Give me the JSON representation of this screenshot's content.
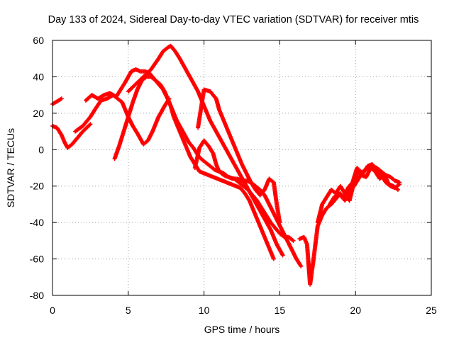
{
  "chart_data": {
    "type": "scatter",
    "title": "Day 133 of 2024, Sidereal Day-to-day VTEC variation (SDTVAR) for receiver mtis",
    "xlabel": "GPS time / hours",
    "ylabel": "SDTVAR / TECUs",
    "xlim": [
      0,
      25
    ],
    "ylim": [
      -80,
      60
    ],
    "xticks": [
      0,
      5,
      10,
      15,
      20,
      25
    ],
    "yticks": [
      -80,
      -60,
      -40,
      -20,
      0,
      20,
      40,
      60
    ],
    "grid": true,
    "marker": "+",
    "color": "#ff0000",
    "series": [
      {
        "x": [
          0.0,
          0.3,
          0.6,
          0.8,
          1.0,
          1.3,
          1.6,
          2.0,
          2.5
        ],
        "y": [
          13,
          12,
          8,
          4,
          1,
          3,
          6,
          10,
          14
        ]
      },
      {
        "x": [
          0.0,
          0.2,
          0.4,
          0.6
        ],
        "y": [
          25,
          26,
          27,
          28
        ]
      },
      {
        "x": [
          1.5,
          2.0,
          2.5,
          2.8,
          3.2,
          3.6,
          4.0,
          4.3,
          4.6,
          5.0,
          5.3,
          5.6,
          6.0,
          6.3,
          6.6,
          7.0,
          7.4,
          7.7
        ],
        "y": [
          10,
          13,
          18,
          22,
          27,
          28,
          30,
          28,
          26,
          18,
          13,
          9,
          3,
          5,
          10,
          18,
          24,
          28
        ]
      },
      {
        "x": [
          2.2,
          2.6,
          3.0,
          3.4,
          3.8,
          4.2,
          4.5,
          4.8,
          5.0,
          5.2,
          5.5,
          5.8,
          6.1,
          6.4,
          6.7,
          7.0,
          7.3,
          7.6,
          7.9,
          8.2,
          8.6,
          9.0,
          9.3,
          9.6,
          9.8,
          10.1,
          10.4,
          10.7,
          11.0,
          11.3,
          11.6,
          12.0,
          12.3,
          12.6,
          12.9,
          13.2,
          13.5,
          13.8,
          14.1,
          14.4,
          14.7,
          15.0,
          15.3,
          15.6,
          15.9
        ],
        "y": [
          27,
          30,
          28,
          30,
          31,
          29,
          33,
          37,
          40,
          43,
          44,
          43,
          43,
          42,
          39,
          36,
          33,
          28,
          22,
          16,
          10,
          4,
          1,
          -3,
          -5,
          -7,
          -9,
          -11,
          -12,
          -13,
          -15,
          -16,
          -18,
          -20,
          -22,
          -25,
          -28,
          -32,
          -36,
          -40,
          -43,
          -46,
          -48,
          -48,
          -50
        ]
      },
      {
        "x": [
          4.1,
          4.4,
          4.7,
          5.0,
          5.3,
          5.6,
          5.9,
          6.2,
          6.5,
          6.8,
          7.1,
          7.4,
          7.6,
          7.8,
          8.0,
          8.2,
          8.5,
          8.8,
          9.1,
          9.4,
          9.7,
          10.0,
          10.3,
          10.6,
          10.9,
          11.2,
          11.5,
          11.8,
          12.1,
          12.4,
          12.7,
          13.0,
          13.3,
          13.6,
          13.9,
          14.2,
          14.4,
          14.6
        ],
        "y": [
          -5,
          2,
          10,
          18,
          26,
          33,
          38,
          40,
          40,
          38,
          36,
          32,
          28,
          24,
          18,
          14,
          8,
          2,
          -4,
          -8,
          -12,
          -13,
          -14,
          -15,
          -16,
          -17,
          -18,
          -19,
          -20,
          -21,
          -24,
          -28,
          -34,
          -40,
          -46,
          -52,
          -56,
          -60
        ]
      },
      {
        "x": [
          5.0,
          5.5,
          6.0,
          6.5,
          7.0,
          7.3,
          7.6,
          7.8,
          8.1,
          8.4,
          8.8,
          9.2,
          9.6,
          10.0,
          10.4,
          10.8,
          11.2,
          11.6,
          12.0,
          12.4,
          12.8,
          13.2,
          13.6,
          14.0,
          14.4,
          14.8,
          15.2
        ],
        "y": [
          32,
          36,
          40,
          44,
          50,
          54,
          56,
          57,
          54,
          50,
          44,
          38,
          32,
          24,
          16,
          10,
          4,
          -2,
          -8,
          -14,
          -20,
          -26,
          -32,
          -38,
          -44,
          -52,
          -58
        ]
      },
      {
        "x": [
          9.4,
          9.7,
          10.0,
          10.3,
          10.6,
          10.8,
          11.0,
          11.3,
          11.6,
          11.9,
          12.2,
          12.5,
          12.8,
          13.1,
          13.4,
          13.7,
          14.0,
          14.3,
          14.6,
          14.9,
          15.2,
          15.5,
          15.8,
          16.1,
          16.4
        ],
        "y": [
          -10,
          1,
          5,
          2,
          -2,
          -8,
          -12,
          -14,
          -15,
          -16,
          -16,
          -17,
          -17,
          -18,
          -20,
          -22,
          -25,
          -30,
          -35,
          -40,
          -45,
          -50,
          -55,
          -60,
          -64
        ]
      },
      {
        "x": [
          9.6,
          10.0,
          10.4,
          10.8,
          11.0,
          11.3,
          11.6,
          11.9,
          12.2,
          12.5,
          12.8,
          13.1,
          13.4,
          13.7,
          14.0,
          14.3,
          14.6,
          14.8,
          15.0
        ],
        "y": [
          12,
          33,
          32,
          28,
          22,
          16,
          10,
          4,
          -2,
          -8,
          -13,
          -18,
          -22,
          -25,
          -22,
          -16,
          -18,
          -30,
          -40
        ]
      },
      {
        "x": [
          16.3,
          16.6,
          16.8,
          17.0,
          17.2,
          17.5,
          17.8,
          18.1,
          18.4,
          18.7,
          19.0,
          19.3,
          19.6,
          19.9,
          20.2,
          20.5,
          20.8,
          21.1,
          21.4,
          21.7,
          22.0,
          22.3,
          22.6,
          22.9
        ],
        "y": [
          -49,
          -48,
          -52,
          -74,
          -62,
          -42,
          -36,
          -32,
          -30,
          -27,
          -24,
          -28,
          -22,
          -20,
          -16,
          -12,
          -10,
          -9,
          -10,
          -12,
          -14,
          -15,
          -17,
          -18
        ]
      },
      {
        "x": [
          17.5,
          17.8,
          18.1,
          18.4,
          18.7,
          19.0,
          19.3,
          19.6,
          19.9,
          20.2,
          20.5,
          20.8,
          21.1,
          21.4,
          21.7,
          22.0,
          22.3,
          22.6,
          22.9
        ],
        "y": [
          -40,
          -30,
          -26,
          -22,
          -24,
          -20,
          -24,
          -28,
          -18,
          -11,
          -13,
          -9,
          -8,
          -12,
          -14,
          -18,
          -20,
          -21,
          -19
        ]
      },
      {
        "x": [
          18.3,
          18.6,
          18.9,
          19.2,
          19.5,
          19.8,
          20.1,
          20.4,
          20.7,
          21.0,
          21.3,
          21.6,
          21.9,
          22.2,
          22.5,
          22.8
        ],
        "y": [
          -30,
          -26,
          -24,
          -27,
          -21,
          -18,
          -10,
          -14,
          -15,
          -10,
          -12,
          -16,
          -14,
          -19,
          -20,
          -22
        ]
      }
    ]
  }
}
